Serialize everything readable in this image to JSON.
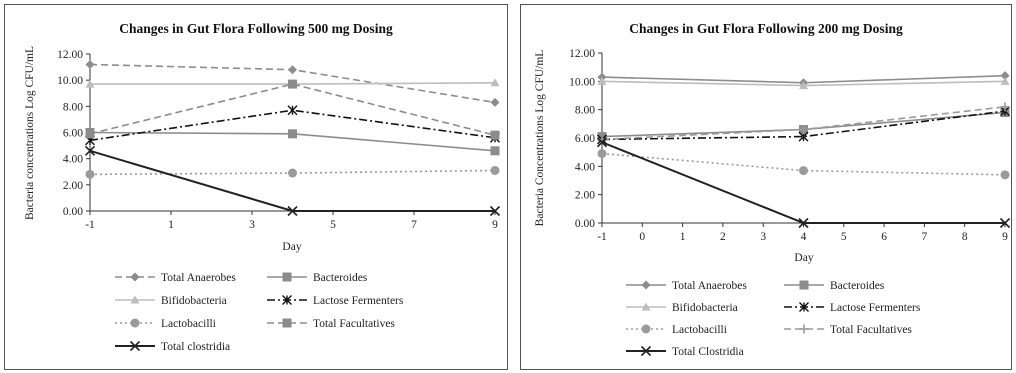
{
  "chart_data": [
    {
      "type": "line",
      "title": "Changes in Gut Flora Following 500 mg Dosing",
      "xlabel": "Day",
      "ylabel": "Bacteria concentrations Log CFU/mL",
      "x": [
        -1,
        4,
        9
      ],
      "xticks": [
        "-1",
        "1",
        "3",
        "5",
        "7",
        "9"
      ],
      "xtick_values": [
        -1,
        1,
        3,
        5,
        7,
        9
      ],
      "yticks": [
        "0.00",
        "2.00",
        "4.00",
        "6.00",
        "8.00",
        "10.00",
        "12.00"
      ],
      "ylim": [
        0,
        12
      ],
      "xlim": [
        -1,
        9
      ],
      "grid": false,
      "legend_position": "bottom",
      "series": [
        {
          "name": "Total Anaerobes",
          "values": [
            11.2,
            10.8,
            8.3
          ],
          "color": "#8c8c8c",
          "dash": "dashed",
          "marker": "diamond"
        },
        {
          "name": "Bacteroides",
          "values": [
            6.0,
            5.9,
            4.6
          ],
          "color": "#8c8c8c",
          "dash": "solid",
          "marker": "square"
        },
        {
          "name": "Bifidobacteria",
          "values": [
            9.7,
            9.7,
            9.8
          ],
          "color": "#bdbdbd",
          "dash": "solid",
          "marker": "triangle"
        },
        {
          "name": "Lactose Fermenters",
          "values": [
            5.4,
            7.7,
            5.6
          ],
          "color": "#111111",
          "dash": "dashdot",
          "marker": "star"
        },
        {
          "name": "Lactobacilli",
          "values": [
            2.8,
            2.9,
            3.1
          ],
          "color": "#9a9a9a",
          "dash": "dotted",
          "marker": "circle"
        },
        {
          "name": "Total Facultatives",
          "values": [
            5.9,
            9.7,
            5.8
          ],
          "color": "#8c8c8c",
          "dash": "dashed",
          "marker": "square"
        },
        {
          "name": "Total clostridia",
          "values": [
            4.6,
            0.0,
            0.0
          ],
          "color": "#222222",
          "dash": "solid",
          "marker": "x"
        }
      ]
    },
    {
      "type": "line",
      "title": "Changes in Gut Flora Following 200 mg Dosing",
      "xlabel": "Day",
      "ylabel": "Bacteria Concentrations Log CFU/mL",
      "x": [
        -1,
        4,
        9
      ],
      "xticks": [
        "-1",
        "0",
        "1",
        "2",
        "3",
        "4",
        "5",
        "6",
        "7",
        "8",
        "9"
      ],
      "xtick_values": [
        -1,
        0,
        1,
        2,
        3,
        4,
        5,
        6,
        7,
        8,
        9
      ],
      "yticks": [
        "0.00",
        "2.00",
        "4.00",
        "6.00",
        "8.00",
        "10.00",
        "12.00"
      ],
      "ylim": [
        0,
        12
      ],
      "xlim": [
        -1,
        9
      ],
      "grid": false,
      "legend_position": "bottom",
      "series": [
        {
          "name": "Total Anaerobes",
          "values": [
            10.3,
            9.9,
            10.4
          ],
          "color": "#8c8c8c",
          "dash": "solid",
          "marker": "diamond"
        },
        {
          "name": "Bacteroides",
          "values": [
            6.1,
            6.6,
            7.8
          ],
          "color": "#8c8c8c",
          "dash": "solid",
          "marker": "square"
        },
        {
          "name": "Bifidobacteria",
          "values": [
            10.0,
            9.7,
            10.0
          ],
          "color": "#bdbdbd",
          "dash": "solid",
          "marker": "triangle"
        },
        {
          "name": "Lactose Fermenters",
          "values": [
            5.9,
            6.1,
            7.9
          ],
          "color": "#111111",
          "dash": "dashdot",
          "marker": "star"
        },
        {
          "name": "Lactobacilli",
          "values": [
            4.9,
            3.7,
            3.4
          ],
          "color": "#9a9a9a",
          "dash": "dotted",
          "marker": "circle"
        },
        {
          "name": "Total Facultatives",
          "values": [
            5.9,
            6.6,
            8.2
          ],
          "color": "#9a9a9a",
          "dash": "dashed",
          "marker": "plus"
        },
        {
          "name": "Total Clostridia",
          "values": [
            5.7,
            0.0,
            0.0
          ],
          "color": "#222222",
          "dash": "solid",
          "marker": "x"
        }
      ]
    }
  ]
}
